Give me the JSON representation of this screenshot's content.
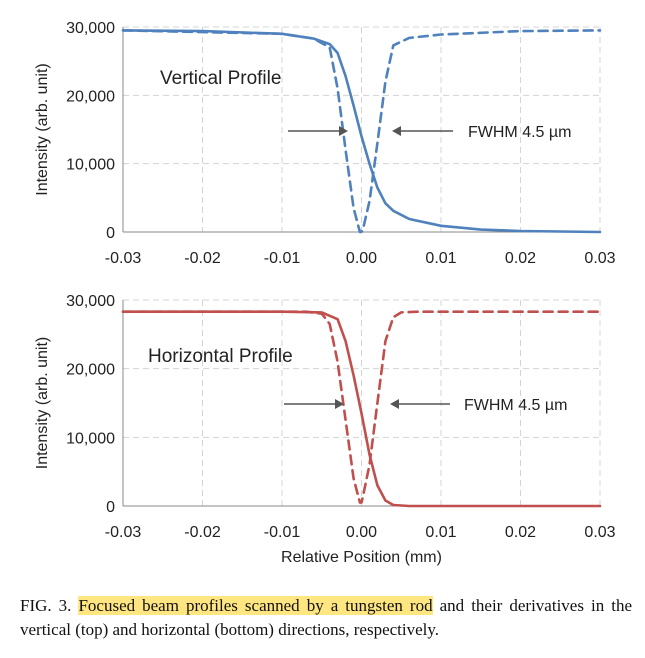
{
  "chart_data": [
    {
      "type": "line",
      "annotation": "Vertical Profile",
      "fwhm_label": "FWHM 4.5 µm",
      "ylabel": "Intensity (arb. unit)",
      "xlabel": "",
      "xlim": [
        -0.03,
        0.03
      ],
      "ylim": [
        0,
        30000
      ],
      "xticks": [
        "-0.03",
        "-0.02",
        "-0.01",
        "0.00",
        "0.01",
        "0.02",
        "0.03"
      ],
      "yticks": [
        "0",
        "10,000",
        "20,000",
        "30,000"
      ],
      "grid": true,
      "color": "#4f81bd",
      "series": [
        {
          "style": "solid",
          "x": [
            -0.03,
            -0.02,
            -0.01,
            -0.006,
            -0.004,
            -0.003,
            -0.002,
            -0.001,
            0.0,
            0.001,
            0.002,
            0.003,
            0.004,
            0.006,
            0.01,
            0.015,
            0.02,
            0.03
          ],
          "y": [
            29500,
            29400,
            29000,
            28300,
            27500,
            26200,
            22800,
            18500,
            14000,
            10000,
            6500,
            4200,
            3100,
            1900,
            900,
            350,
            150,
            0
          ]
        },
        {
          "style": "dashed",
          "x": [
            -0.03,
            -0.01,
            -0.006,
            -0.004,
            -0.003,
            -0.002,
            -0.001,
            -0.0002,
            0.0,
            0.0002,
            0.001,
            0.002,
            0.003,
            0.004,
            0.006,
            0.01,
            0.02,
            0.03
          ],
          "y": [
            29500,
            29000,
            28300,
            27000,
            21000,
            12000,
            3500,
            0,
            0,
            500,
            4500,
            13000,
            22000,
            27300,
            28400,
            28900,
            29400,
            29500
          ]
        }
      ]
    },
    {
      "type": "line",
      "annotation": "Horizontal Profile",
      "fwhm_label": "FWHM 4.5 µm",
      "ylabel": "Intensity (arb. unit)",
      "xlabel": "Relative Position (mm)",
      "xlim": [
        -0.03,
        0.03
      ],
      "ylim": [
        0,
        30000
      ],
      "xticks": [
        "-0.03",
        "-0.02",
        "-0.01",
        "0.00",
        "0.01",
        "0.02",
        "0.03"
      ],
      "yticks": [
        "0",
        "10,000",
        "20,000",
        "30,000"
      ],
      "grid": true,
      "color": "#c0504d",
      "series": [
        {
          "style": "solid",
          "x": [
            -0.03,
            -0.01,
            -0.005,
            -0.003,
            -0.002,
            -0.001,
            0.0,
            0.001,
            0.002,
            0.003,
            0.004,
            0.006,
            0.01,
            0.03
          ],
          "y": [
            28300,
            28300,
            28200,
            27200,
            24000,
            19000,
            13500,
            7500,
            3000,
            800,
            150,
            0,
            0,
            0
          ]
        },
        {
          "style": "dashed",
          "x": [
            -0.03,
            -0.007,
            -0.005,
            -0.004,
            -0.003,
            -0.002,
            -0.001,
            -0.0002,
            0.0,
            0.0002,
            0.001,
            0.002,
            0.003,
            0.004,
            0.005,
            0.007,
            0.03
          ],
          "y": [
            28300,
            28300,
            28000,
            26500,
            21000,
            12500,
            4000,
            500,
            500,
            1500,
            6000,
            15000,
            24000,
            27500,
            28200,
            28300,
            28300
          ]
        }
      ]
    }
  ],
  "caption": {
    "label": "FIG. 3.",
    "highlight": "Focused beam profiles scanned by a tungsten rod",
    "rest": "and their derivatives in the vertical (top) and horizontal (bottom) directions, respectively."
  }
}
